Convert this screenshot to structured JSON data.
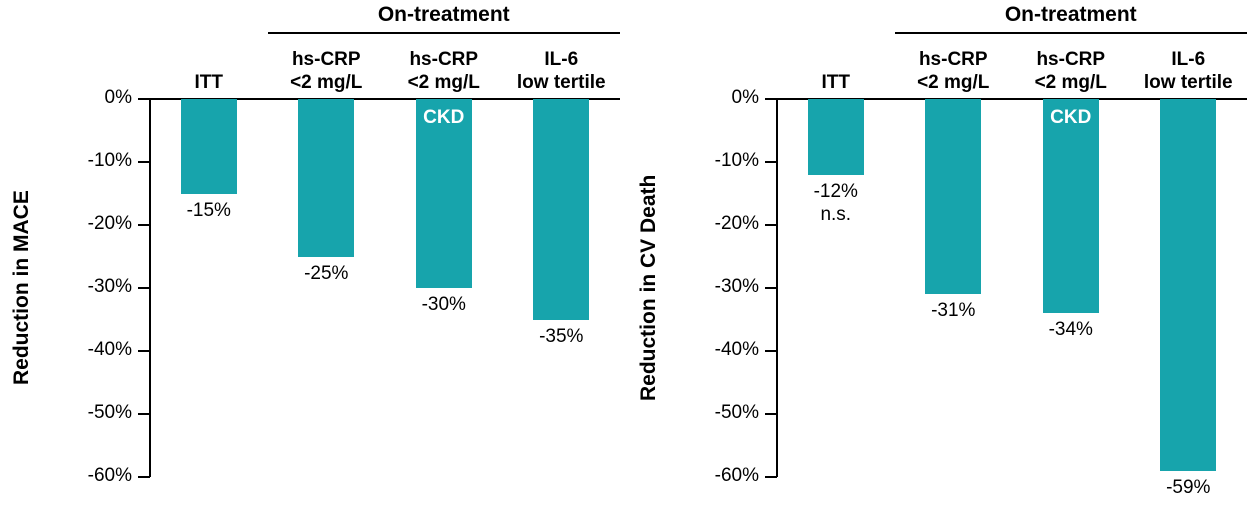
{
  "figure": {
    "background": "#FFFFFF",
    "text_color": "#000000"
  },
  "chart_data": [
    {
      "type": "bar",
      "title": "",
      "ylabel": "Reduction in MACE",
      "xlabel": "",
      "group_header": "On-treatment",
      "group_header_span": [
        1,
        3
      ],
      "categories": [
        "ITT",
        "hs-CRP\n<2 mg/L",
        "hs-CRP\n<2 mg/L",
        "IL-6\nlow tertile"
      ],
      "values": [
        -15,
        -25,
        -30,
        -35
      ],
      "bar_labels": [
        "-15%",
        "-25%",
        "-30%",
        "-35%"
      ],
      "bar_sublabels": [
        "",
        "",
        "",
        ""
      ],
      "inner_labels": [
        "",
        "",
        "CKD",
        ""
      ],
      "yticks": [
        0,
        -10,
        -20,
        -30,
        -40,
        -50,
        -60
      ],
      "ytick_labels": [
        "0%",
        "-10%",
        "-20%",
        "-30%",
        "-40%",
        "-50%",
        "-60%"
      ],
      "ylim": [
        -60,
        0
      ],
      "grid": false,
      "legend": "none",
      "bar_color": "#17A4AC"
    },
    {
      "type": "bar",
      "title": "",
      "ylabel": "Reduction in CV Death",
      "xlabel": "",
      "group_header": "On-treatment",
      "group_header_span": [
        1,
        3
      ],
      "categories": [
        "ITT",
        "hs-CRP\n<2 mg/L",
        "hs-CRP\n<2 mg/L",
        "IL-6\nlow tertile"
      ],
      "values": [
        -12,
        -31,
        -34,
        -59
      ],
      "bar_labels": [
        "-12%",
        "-31%",
        "-34%",
        "-59%"
      ],
      "bar_sublabels": [
        "n.s.",
        "",
        "",
        ""
      ],
      "inner_labels": [
        "",
        "",
        "CKD",
        ""
      ],
      "yticks": [
        0,
        -10,
        -20,
        -30,
        -40,
        -50,
        -60
      ],
      "ytick_labels": [
        "0%",
        "-10%",
        "-20%",
        "-30%",
        "-40%",
        "-50%",
        "-60%"
      ],
      "ylim": [
        -60,
        0
      ],
      "grid": false,
      "legend": "none",
      "bar_color": "#17A4AC"
    }
  ]
}
